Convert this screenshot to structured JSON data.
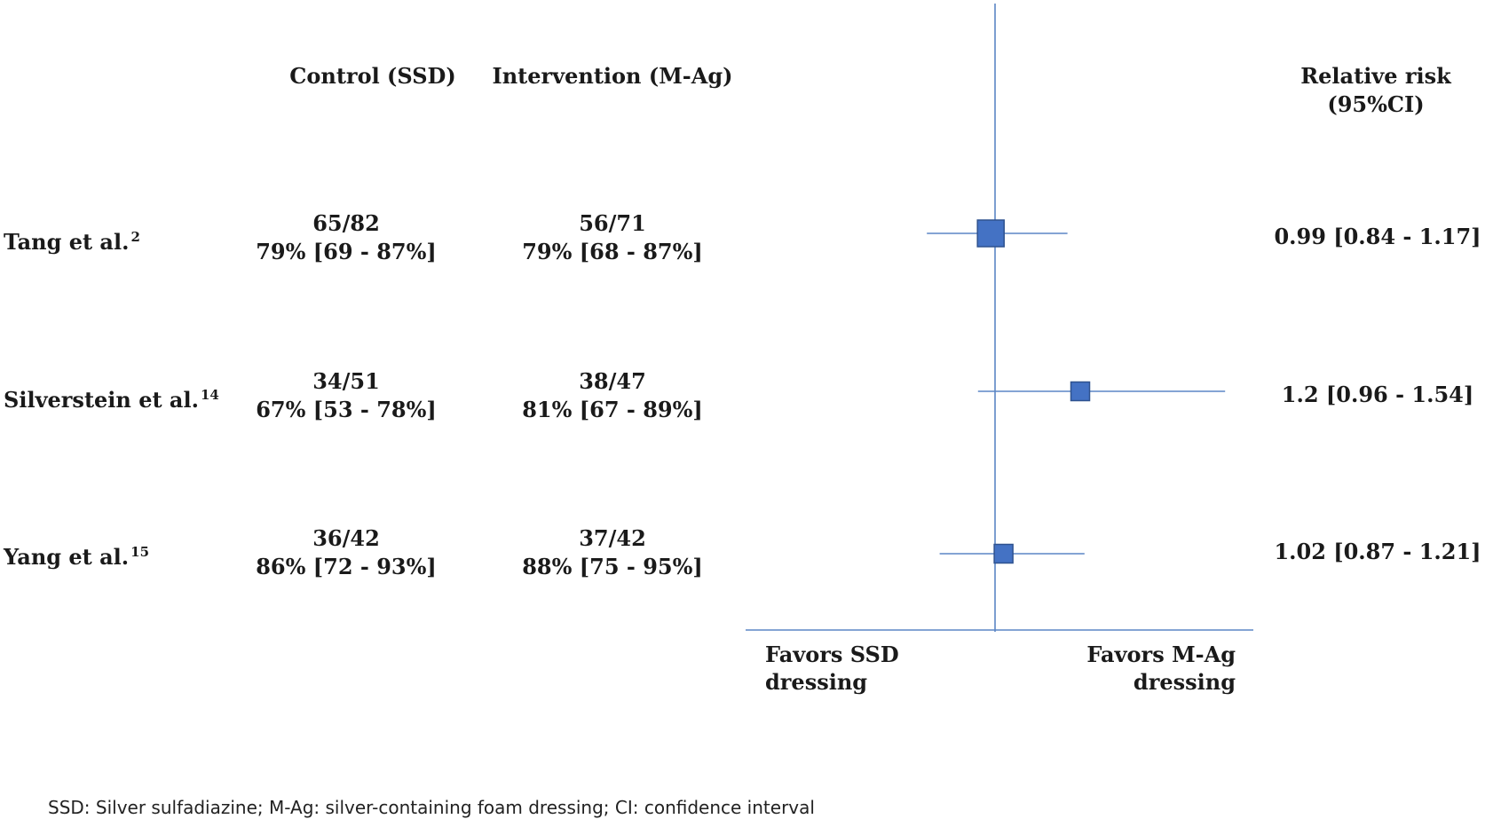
{
  "headers": {
    "control": "Control (SSD)",
    "intervention": "Intervention (M-Ag)",
    "rr_line1": "Relative risk",
    "rr_line2": "(95%CI)"
  },
  "studies": [
    {
      "name": "Tang et al.",
      "ref": "2",
      "control_counts": "65/82",
      "control_pct": "79% [69 - 87%]",
      "intervention_counts": "56/71",
      "intervention_pct": "79% [68 - 87%]",
      "rr_text": "0.99 [0.84 - 1.17]"
    },
    {
      "name": "Silverstein et al.",
      "ref": "14",
      "control_counts": "34/51",
      "control_pct": "67% [53 - 78%]",
      "intervention_counts": "38/47",
      "intervention_pct": "81% [67 - 89%]",
      "rr_text": "1.2 [0.96 - 1.54]"
    },
    {
      "name": "Yang et al.",
      "ref": "15",
      "control_counts": "36/42",
      "control_pct": "86% [72 - 93%]",
      "intervention_counts": "37/42",
      "intervention_pct": "88% [75 - 95%]",
      "rr_text": "1.02 [0.87 - 1.21]"
    }
  ],
  "favors": {
    "left_line1": "Favors SSD",
    "left_line2": "dressing",
    "right_line1": "Favors M-Ag",
    "right_line2": "dressing"
  },
  "footnote": "SSD: Silver sulfadiazine; M-Ag: silver-containing foam dressing; CI: confidence interval",
  "chart_data": {
    "type": "forest",
    "reference_value": 1,
    "series": [
      {
        "study": "Tang et al.",
        "rr": 0.99,
        "lower": 0.84,
        "upper": 1.17,
        "weight": "large"
      },
      {
        "study": "Silverstein et al.",
        "rr": 1.2,
        "lower": 0.96,
        "upper": 1.54,
        "weight": "small"
      },
      {
        "study": "Yang et al.",
        "rr": 1.02,
        "lower": 0.87,
        "upper": 1.21,
        "weight": "small"
      }
    ],
    "colors": {
      "line": "#5b86c5",
      "marker": "#4472c4",
      "marker_edge": "#2f528f"
    }
  }
}
